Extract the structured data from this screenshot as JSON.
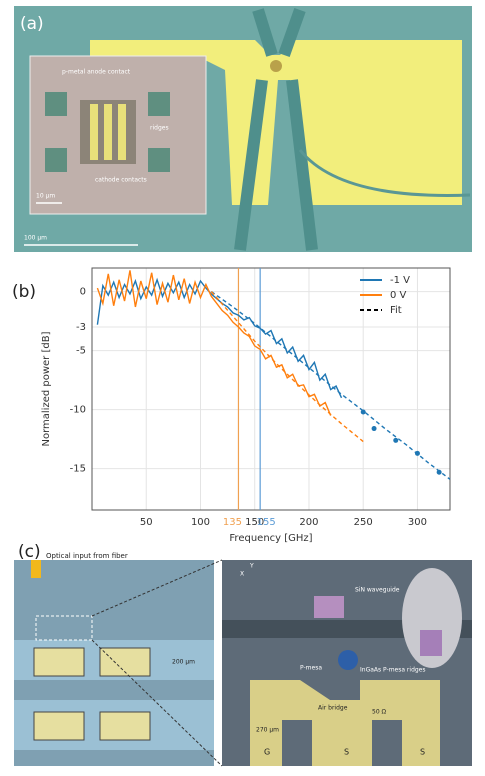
{
  "panel_a": {
    "label": "(a)",
    "annotations": [
      "p-metal anode contact",
      "ridges",
      "cathode contacts"
    ],
    "inset_scale": "10 µm",
    "scale": "100 µm"
  },
  "chart_data": {
    "type": "line",
    "panel_label": "(b)",
    "x_label": "Frequency [GHz]",
    "y_label": "Normalized power [dB]",
    "xlim": [
      0,
      330
    ],
    "ylim": [
      -18.5,
      2
    ],
    "xticks": [
      50,
      100,
      150,
      200,
      250,
      300
    ],
    "yticks": [
      0,
      -3,
      -5,
      -10,
      -15
    ],
    "grid": true,
    "legend": "upper right",
    "vlines": [
      {
        "value": 135,
        "label": "135",
        "color": "#f0a050"
      },
      {
        "value": 155,
        "label": "155",
        "color": "#5b9bd5"
      }
    ],
    "series": [
      {
        "name": "-1 V",
        "color": "#1f77b4",
        "x": [
          5,
          10,
          15,
          20,
          25,
          30,
          35,
          40,
          45,
          50,
          55,
          60,
          65,
          70,
          75,
          80,
          85,
          90,
          95,
          100,
          105,
          110,
          115,
          120,
          125,
          130,
          135,
          140,
          145,
          150,
          155,
          160,
          165,
          170,
          175,
          180,
          185,
          190,
          195,
          200,
          205,
          210,
          215,
          220,
          225,
          230
        ],
        "values": [
          -2.8,
          0.5,
          -0.3,
          0.8,
          -0.5,
          0.6,
          -0.2,
          0.9,
          -0.6,
          0.4,
          -0.3,
          1.0,
          -0.4,
          0.7,
          -0.1,
          0.8,
          -0.5,
          0.6,
          -0.2,
          0.9,
          0.3,
          -0.2,
          -0.6,
          -1.0,
          -1.3,
          -1.8,
          -2.0,
          -2.4,
          -2.2,
          -2.9,
          -3.1,
          -3.6,
          -3.3,
          -4.4,
          -4.0,
          -5.2,
          -4.7,
          -5.9,
          -5.4,
          -6.6,
          -6.0,
          -7.5,
          -7.0,
          -8.3,
          -8.0,
          -9.0
        ],
        "marker_x": [
          250,
          260,
          280,
          300,
          320
        ],
        "marker_values": [
          -10.2,
          -11.6,
          -12.6,
          -13.7,
          -15.3
        ]
      },
      {
        "name": "0 V",
        "color": "#ff7f0e",
        "x": [
          5,
          10,
          15,
          20,
          25,
          30,
          35,
          40,
          45,
          50,
          55,
          60,
          65,
          70,
          75,
          80,
          85,
          90,
          95,
          100,
          105,
          110,
          115,
          120,
          125,
          130,
          135,
          140,
          145,
          150,
          155,
          160,
          165,
          170,
          175,
          180,
          185,
          190,
          195,
          200,
          205,
          210,
          215,
          220
        ],
        "values": [
          0.3,
          -1.0,
          1.5,
          -1.2,
          1.0,
          -0.8,
          1.8,
          -1.3,
          0.9,
          -0.6,
          1.6,
          -1.1,
          0.7,
          -0.9,
          1.4,
          -0.7,
          1.1,
          -1.0,
          0.8,
          -0.5,
          0.6,
          -0.4,
          -1.0,
          -1.6,
          -2.0,
          -2.6,
          -3.0,
          -3.5,
          -3.8,
          -4.6,
          -4.9,
          -5.7,
          -5.4,
          -6.4,
          -6.2,
          -7.3,
          -7.0,
          -8.0,
          -7.9,
          -8.9,
          -8.7,
          -9.7,
          -9.4,
          -10.5
        ]
      },
      {
        "name": "Fit",
        "color": "#000000",
        "dashed": true,
        "curves": [
          {
            "color": "#1f77b4",
            "x": [
              110,
              130,
              150,
              170,
              190,
              210,
              230,
              250,
              270,
              290,
              310,
              330
            ],
            "values": [
              0,
              -1.3,
              -2.7,
              -4.2,
              -5.7,
              -7.2,
              -8.7,
              -10.1,
              -11.6,
              -13.0,
              -14.5,
              -15.9
            ]
          },
          {
            "color": "#ff7f0e",
            "x": [
              110,
              130,
              150,
              170,
              190,
              210,
              230,
              250
            ],
            "values": [
              0,
              -2.1,
              -4.2,
              -6.1,
              -7.9,
              -9.6,
              -11.2,
              -12.7
            ]
          }
        ]
      }
    ]
  },
  "panel_c": {
    "label": "(c)",
    "input": "Optical input from fiber",
    "left_scale": "200 µm",
    "axes": [
      "X",
      "Y"
    ],
    "callouts": [
      "SiN waveguide",
      "InGaAs P-mesa ridges",
      "P-mesa",
      "Air bridge"
    ],
    "pads": [
      "G",
      "S",
      "S"
    ],
    "pad_notes": [
      "270 µm",
      "50 Ω"
    ]
  }
}
